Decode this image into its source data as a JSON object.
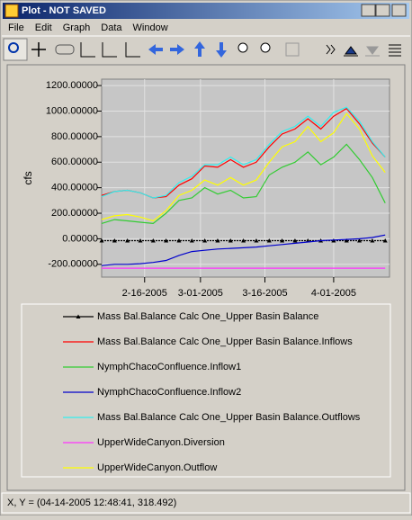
{
  "window": {
    "title": "Plot - NOT SAVED",
    "menu": [
      "File",
      "Edit",
      "Graph",
      "Data",
      "Window"
    ],
    "status": "X, Y = (04-14-2005 12:48:41, 318.492)"
  },
  "chart_data": {
    "type": "line",
    "y_label": "cfs",
    "x": [
      "2-06-2005",
      "2-09-2005",
      "2-12-2005",
      "2-15-2005",
      "2-18-2005",
      "2-21-2005",
      "2-24-2005",
      "2-27-2005",
      "3-02-2005",
      "3-05-2005",
      "3-08-2005",
      "3-11-2005",
      "3-14-2005",
      "3-17-2005",
      "3-20-2005",
      "3-23-2005",
      "3-26-2005",
      "3-29-2005",
      "4-01-2005",
      "4-04-2005",
      "4-07-2005",
      "4-10-2005",
      "4-13-2005"
    ],
    "xlim": [
      "2-06-2005",
      "4-14-2005"
    ],
    "xticks": [
      "2-16-2005",
      "3-01-2005",
      "3-16-2005",
      "4-01-2005"
    ],
    "ylim": [
      -300,
      1250
    ],
    "yticks": [
      {
        "value": -200,
        "label": "-200.00000"
      },
      {
        "value": 0,
        "label": "0.00000"
      },
      {
        "value": 200,
        "label": "200.00000"
      },
      {
        "value": 400,
        "label": "400.00000"
      },
      {
        "value": 600,
        "label": "600.00000"
      },
      {
        "value": 800,
        "label": "800.00000"
      },
      {
        "value": 1000,
        "label": "1000.00000"
      },
      {
        "value": 1200,
        "label": "1200.00000"
      }
    ],
    "grid": true,
    "series": [
      {
        "name": "Mass Bal.Balance Calc One_Upper Basin Balance",
        "color": "#000000",
        "values": [
          -15,
          -15,
          -15,
          -15,
          -15,
          -15,
          -15,
          -15,
          -15,
          -15,
          -15,
          -15,
          -15,
          -15,
          -15,
          -15,
          -15,
          -15,
          -15,
          -15,
          -15,
          -15,
          -15
        ]
      },
      {
        "name": "Mass Bal.Balance Calc One_Upper Basin Balance.Inflows",
        "color": "#ff0000",
        "values": [
          340,
          370,
          380,
          360,
          320,
          330,
          420,
          470,
          570,
          560,
          620,
          560,
          600,
          720,
          820,
          860,
          940,
          860,
          960,
          1020,
          900,
          750,
          640
        ]
      },
      {
        "name": "NymphChacoConfluence.Inflow1",
        "color": "#33cc33",
        "values": [
          120,
          150,
          140,
          130,
          120,
          200,
          300,
          320,
          400,
          350,
          380,
          320,
          330,
          500,
          560,
          600,
          680,
          580,
          640,
          740,
          620,
          480,
          280
        ]
      },
      {
        "name": "NymphChacoConfluence.Inflow2",
        "color": "#0000cc",
        "values": [
          -210,
          -200,
          -200,
          -195,
          -185,
          -170,
          -130,
          -100,
          -90,
          -80,
          -75,
          -70,
          -65,
          -55,
          -45,
          -35,
          -25,
          -15,
          -10,
          -5,
          0,
          10,
          30
        ]
      },
      {
        "name": "Mass Bal.Balance Calc One_Upper Basin Balance.Outflows",
        "color": "#33eeee",
        "values": [
          330,
          370,
          380,
          360,
          320,
          340,
          440,
          490,
          580,
          580,
          640,
          580,
          620,
          740,
          840,
          880,
          960,
          880,
          990,
          1030,
          920,
          760,
          640
        ]
      },
      {
        "name": "UpperWideCanyon.Diversion",
        "color": "#ff33ff",
        "values": [
          -230,
          -230,
          -230,
          -230,
          -230,
          -230,
          -230,
          -230,
          -230,
          -230,
          -230,
          -230,
          -230,
          -230,
          -230,
          -230,
          -230,
          -230,
          -230,
          -230,
          -230,
          -230,
          -230
        ]
      },
      {
        "name": "UpperWideCanyon.Outflow",
        "color": "#ffff00",
        "values": [
          150,
          180,
          190,
          170,
          140,
          220,
          340,
          380,
          460,
          420,
          480,
          420,
          460,
          600,
          720,
          760,
          880,
          760,
          830,
          980,
          860,
          650,
          520
        ]
      }
    ]
  }
}
